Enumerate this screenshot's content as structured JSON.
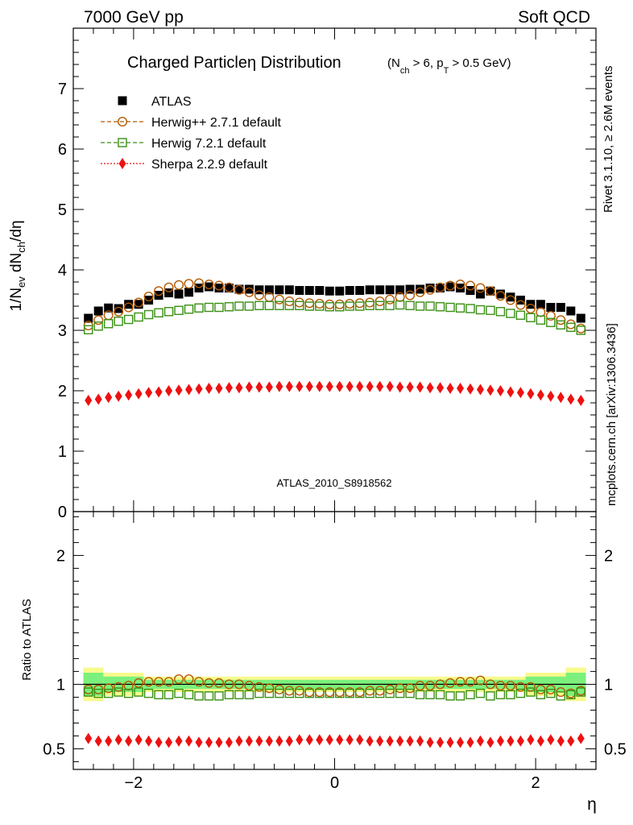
{
  "header": {
    "left": "7000 GeV pp",
    "right": "Soft QCD"
  },
  "side_labels": {
    "rivet": "Rivet 3.1.10, ≥ 2.6M events",
    "mcplots": "mcplots.cern.ch [arXiv:1306.3436]"
  },
  "colors": {
    "atlas": "#000000",
    "herwigpp": "#b35900",
    "herwig7": "#3a8f14",
    "sherpa": "#ee1111",
    "band_inner": "#7cf07c",
    "band_outer": "#f7fa8c"
  },
  "chart_data": [
    {
      "type": "scatter",
      "title": "Charged Particleη Distribution",
      "title_sub": "(N_ch > 6, p_T > 0.5 GeV)",
      "ylabel": "1/N_ev dN_ch/dη",
      "xlim": [
        -2.6,
        2.6
      ],
      "ylim": [
        0,
        8
      ],
      "yticks": [
        0,
        1,
        2,
        3,
        4,
        5,
        6,
        7
      ],
      "watermark": "ATLAS_2010_S8918562",
      "legend_position": "top-left",
      "x": [
        -2.45,
        -2.35,
        -2.25,
        -2.15,
        -2.05,
        -1.95,
        -1.85,
        -1.75,
        -1.65,
        -1.55,
        -1.45,
        -1.35,
        -1.25,
        -1.15,
        -1.05,
        -0.95,
        -0.85,
        -0.75,
        -0.65,
        -0.55,
        -0.45,
        -0.35,
        -0.25,
        -0.15,
        -0.05,
        0.05,
        0.15,
        0.25,
        0.35,
        0.45,
        0.55,
        0.65,
        0.75,
        0.85,
        0.95,
        1.05,
        1.15,
        1.25,
        1.35,
        1.45,
        1.55,
        1.65,
        1.75,
        1.85,
        1.95,
        2.05,
        2.15,
        2.25,
        2.35,
        2.45
      ],
      "series": [
        {
          "name": "ATLAS",
          "marker": "square-filled",
          "values": [
            3.2,
            3.32,
            3.37,
            3.36,
            3.43,
            3.43,
            3.5,
            3.58,
            3.62,
            3.6,
            3.63,
            3.7,
            3.72,
            3.7,
            3.7,
            3.68,
            3.68,
            3.67,
            3.67,
            3.67,
            3.67,
            3.66,
            3.66,
            3.66,
            3.65,
            3.65,
            3.66,
            3.66,
            3.67,
            3.67,
            3.67,
            3.67,
            3.68,
            3.68,
            3.7,
            3.7,
            3.72,
            3.7,
            3.66,
            3.6,
            3.65,
            3.6,
            3.55,
            3.5,
            3.43,
            3.43,
            3.38,
            3.38,
            3.32,
            3.2
          ]
        },
        {
          "name": "Herwig++ 2.7.1 default",
          "marker": "circle-open",
          "values": [
            3.08,
            3.17,
            3.25,
            3.31,
            3.38,
            3.46,
            3.56,
            3.65,
            3.71,
            3.75,
            3.77,
            3.78,
            3.76,
            3.74,
            3.71,
            3.67,
            3.63,
            3.58,
            3.55,
            3.51,
            3.48,
            3.46,
            3.45,
            3.44,
            3.43,
            3.43,
            3.44,
            3.45,
            3.46,
            3.48,
            3.51,
            3.55,
            3.58,
            3.63,
            3.67,
            3.71,
            3.74,
            3.76,
            3.74,
            3.7,
            3.65,
            3.57,
            3.5,
            3.42,
            3.36,
            3.3,
            3.24,
            3.17,
            3.1,
            3.03
          ]
        },
        {
          "name": "Herwig 7.2.1 default",
          "marker": "square-open",
          "values": [
            3.01,
            3.07,
            3.11,
            3.15,
            3.18,
            3.22,
            3.26,
            3.29,
            3.31,
            3.33,
            3.35,
            3.37,
            3.38,
            3.38,
            3.39,
            3.4,
            3.4,
            3.41,
            3.41,
            3.41,
            3.41,
            3.41,
            3.4,
            3.4,
            3.39,
            3.39,
            3.4,
            3.4,
            3.41,
            3.41,
            3.41,
            3.42,
            3.41,
            3.4,
            3.4,
            3.39,
            3.38,
            3.37,
            3.36,
            3.34,
            3.33,
            3.31,
            3.28,
            3.25,
            3.21,
            3.17,
            3.13,
            3.09,
            3.05,
            3.0
          ]
        },
        {
          "name": "Sherpa 2.2.9 default",
          "marker": "diamond-filled",
          "values": [
            1.84,
            1.86,
            1.89,
            1.91,
            1.93,
            1.95,
            1.97,
            1.98,
            2.0,
            2.01,
            2.02,
            2.03,
            2.04,
            2.04,
            2.05,
            2.05,
            2.06,
            2.06,
            2.06,
            2.07,
            2.07,
            2.07,
            2.07,
            2.07,
            2.07,
            2.07,
            2.07,
            2.07,
            2.07,
            2.07,
            2.07,
            2.06,
            2.06,
            2.06,
            2.05,
            2.05,
            2.04,
            2.04,
            2.03,
            2.02,
            2.01,
            2.0,
            1.98,
            1.97,
            1.95,
            1.93,
            1.91,
            1.89,
            1.86,
            1.84
          ]
        }
      ]
    },
    {
      "type": "scatter",
      "ylabel": "Ratio to ATLAS",
      "xlabel": "η",
      "xlim": [
        -2.6,
        2.6
      ],
      "ylim": [
        0.34,
        2.34
      ],
      "xticks": [
        -2,
        0,
        2
      ],
      "xtick_labels": [
        "−2",
        "0",
        "2"
      ],
      "yticks": [
        0.5,
        1,
        2
      ],
      "ytick_labels": [
        "0.5",
        "1",
        "2"
      ],
      "band_edges": [
        -2.5,
        -2.3,
        -1.9,
        1.9,
        2.3,
        2.5
      ],
      "band_inner_halfwidth": [
        0.09,
        0.06,
        0.035,
        0.06,
        0.09
      ],
      "band_outer_halfwidth": [
        0.13,
        0.09,
        0.06,
        0.09,
        0.13
      ],
      "series": [
        {
          "name": "Herwig++ 2.7.1 default",
          "values": [
            0.96,
            0.96,
            0.97,
            0.98,
            0.99,
            1.01,
            1.02,
            1.02,
            1.02,
            1.04,
            1.04,
            1.02,
            1.01,
            1.01,
            1.0,
            1.0,
            0.99,
            0.98,
            0.97,
            0.96,
            0.95,
            0.95,
            0.94,
            0.94,
            0.94,
            0.94,
            0.94,
            0.94,
            0.95,
            0.95,
            0.96,
            0.97,
            0.97,
            0.99,
            0.99,
            1.0,
            1.01,
            1.02,
            1.02,
            1.03,
            1.0,
            0.99,
            0.99,
            0.98,
            0.98,
            0.96,
            0.96,
            0.94,
            0.93,
            0.95
          ]
        },
        {
          "name": "Herwig 7.2.1 default",
          "values": [
            0.94,
            0.93,
            0.93,
            0.94,
            0.93,
            0.94,
            0.93,
            0.92,
            0.92,
            0.93,
            0.92,
            0.91,
            0.91,
            0.91,
            0.92,
            0.92,
            0.92,
            0.93,
            0.93,
            0.93,
            0.93,
            0.93,
            0.93,
            0.93,
            0.93,
            0.93,
            0.93,
            0.93,
            0.93,
            0.93,
            0.93,
            0.93,
            0.93,
            0.92,
            0.92,
            0.92,
            0.91,
            0.91,
            0.92,
            0.93,
            0.91,
            0.92,
            0.92,
            0.93,
            0.94,
            0.92,
            0.93,
            0.91,
            0.92,
            0.94
          ]
        },
        {
          "name": "Sherpa 2.2.9 default",
          "values": [
            0.58,
            0.56,
            0.56,
            0.57,
            0.56,
            0.57,
            0.56,
            0.55,
            0.55,
            0.56,
            0.56,
            0.55,
            0.55,
            0.55,
            0.55,
            0.56,
            0.56,
            0.56,
            0.56,
            0.56,
            0.56,
            0.57,
            0.57,
            0.57,
            0.57,
            0.57,
            0.57,
            0.57,
            0.56,
            0.56,
            0.56,
            0.56,
            0.56,
            0.56,
            0.55,
            0.55,
            0.55,
            0.55,
            0.55,
            0.56,
            0.55,
            0.56,
            0.56,
            0.56,
            0.57,
            0.56,
            0.57,
            0.56,
            0.56,
            0.58
          ]
        }
      ]
    }
  ]
}
